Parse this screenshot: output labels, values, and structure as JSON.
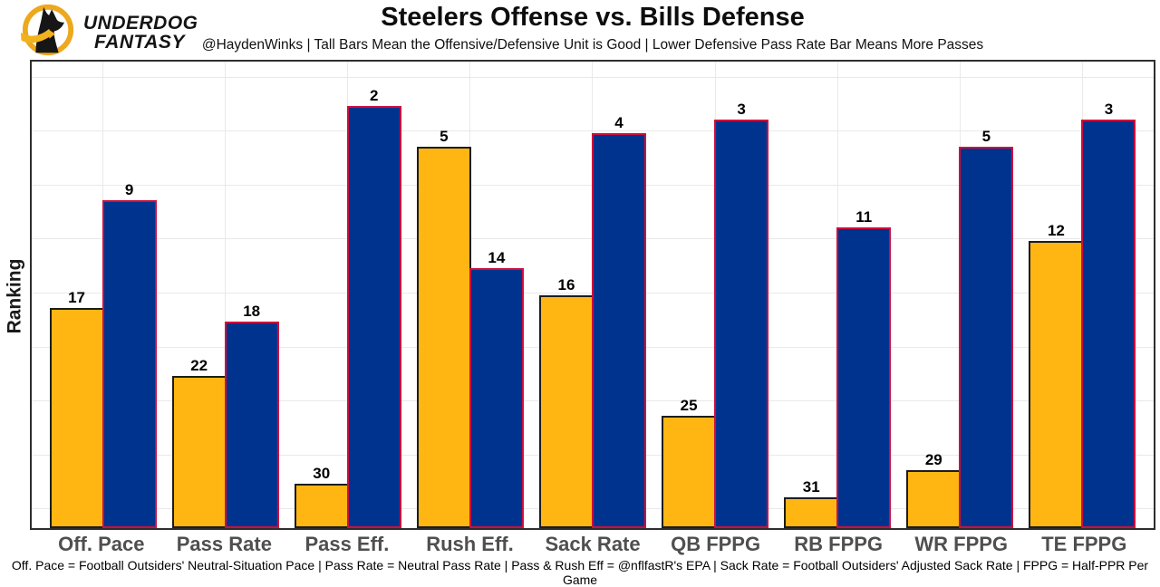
{
  "header": {
    "brand_line1": "UNDERDOG",
    "brand_line2": "FANTASY",
    "title": "Steelers Offense vs. Bills Defense",
    "subtitle": "@HaydenWinks | Tall Bars Mean the Offensive/Defensive Unit is Good | Lower Defensive Pass Rate Bar Means More Passes"
  },
  "chart_data": {
    "type": "bar",
    "title": "Steelers Offense vs. Bills Defense",
    "ylabel": "Ranking",
    "categories": [
      "Off. Pace",
      "Pass Rate",
      "Pass Eff.",
      "Rush Eff.",
      "Sack Rate",
      "QB FPPG",
      "RB FPPG",
      "WR FPPG",
      "TE FPPG"
    ],
    "series": [
      {
        "name": "Steelers Offense",
        "fill": "#FFB612",
        "border": "#1c1c1c",
        "values": [
          17,
          22,
          30,
          5,
          16,
          25,
          31,
          29,
          12
        ]
      },
      {
        "name": "Bills Defense",
        "fill": "#00338D",
        "border": "#CE0E3D",
        "values": [
          9,
          18,
          2,
          14,
          4,
          3,
          11,
          5,
          3
        ]
      }
    ],
    "value_semantics": "NFL ranking out of 32; lower rank number = better = taller bar",
    "yaxis": {
      "tick_labels_visible": false
    },
    "grid": true,
    "legend": "none"
  },
  "footer": "Off. Pace = Football Outsiders' Neutral-Situation Pace | Pass Rate = Neutral Pass Rate | Pass & Rush Eff = @nflfastR's EPA | Sack Rate = Football Outsiders' Adjusted Sack Rate | FPPG = Half-PPR Per Game"
}
